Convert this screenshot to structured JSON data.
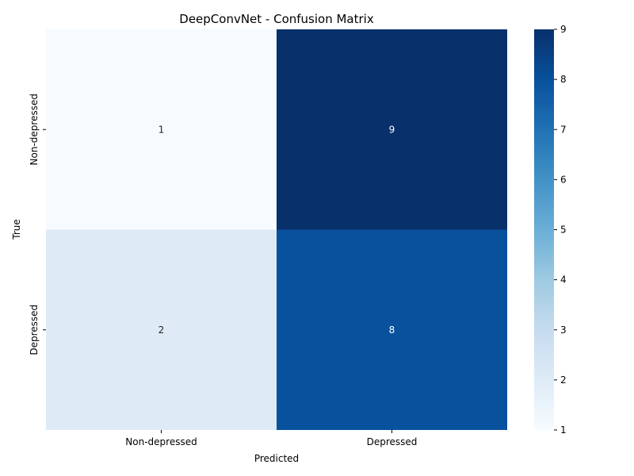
{
  "chart_data": {
    "type": "heatmap",
    "title": "DeepConvNet - Confusion Matrix",
    "xlabel": "Predicted",
    "ylabel": "True",
    "x_categories": [
      "Non-depressed",
      "Depressed"
    ],
    "y_categories": [
      "Non-depressed",
      "Depressed"
    ],
    "values": [
      [
        1,
        9
      ],
      [
        2,
        8
      ]
    ],
    "colormap": "Blues",
    "colorbar": {
      "min": 1,
      "max": 9,
      "ticks": [
        1,
        2,
        3,
        4,
        5,
        6,
        7,
        8,
        9
      ]
    },
    "grid": false
  }
}
